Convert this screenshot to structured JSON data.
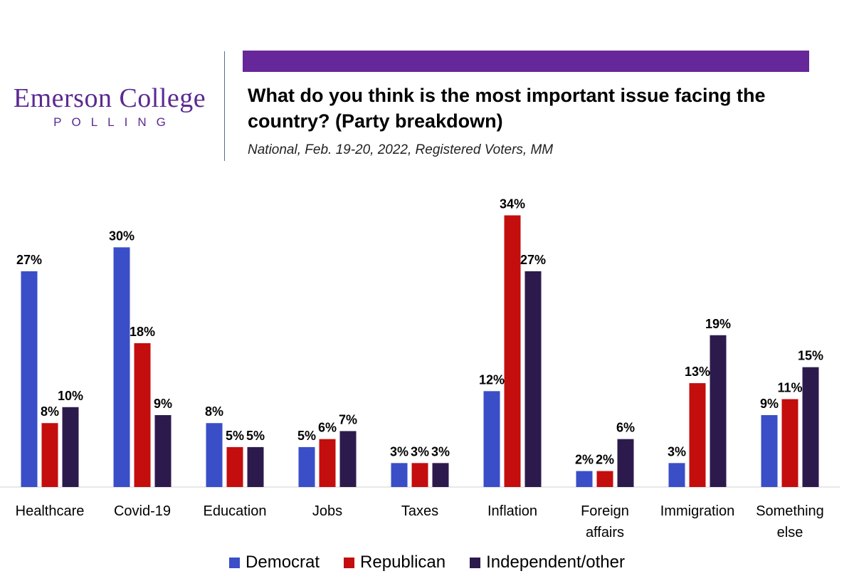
{
  "logo": {
    "main": "Emerson College",
    "sub": "POLLING"
  },
  "header": {
    "title": "What do you think is the most important issue facing the country? (Party breakdown)",
    "subtitle": "National, Feb. 19-20, 2022, Registered Voters, MM"
  },
  "colors": {
    "Democrat": "#3a4ec8",
    "Republican": "#c40d0d",
    "Independent/other": "#2d1a4d",
    "accent": "#66279a"
  },
  "legend": [
    "Democrat",
    "Republican",
    "Independent/other"
  ],
  "chart_data": {
    "type": "bar",
    "categories": [
      "Healthcare",
      "Covid-19",
      "Education",
      "Jobs",
      "Taxes",
      "Inflation",
      "Foreign affairs",
      "Immigration",
      "Something else"
    ],
    "category_lines": [
      [
        "Healthcare"
      ],
      [
        "Covid-19"
      ],
      [
        "Education"
      ],
      [
        "Jobs"
      ],
      [
        "Taxes"
      ],
      [
        "Inflation"
      ],
      [
        "Foreign",
        "affairs"
      ],
      [
        "Immigration"
      ],
      [
        "Something",
        "else"
      ]
    ],
    "series": [
      {
        "name": "Democrat",
        "values": [
          27,
          30,
          8,
          5,
          3,
          12,
          2,
          3,
          9
        ]
      },
      {
        "name": "Republican",
        "values": [
          8,
          18,
          5,
          6,
          3,
          34,
          2,
          13,
          11
        ]
      },
      {
        "name": "Independent/other",
        "values": [
          10,
          9,
          5,
          7,
          3,
          27,
          6,
          19,
          15
        ]
      }
    ],
    "value_suffix": "%",
    "ylim": [
      0,
      36
    ],
    "grid": false,
    "legend_position": "bottom"
  }
}
